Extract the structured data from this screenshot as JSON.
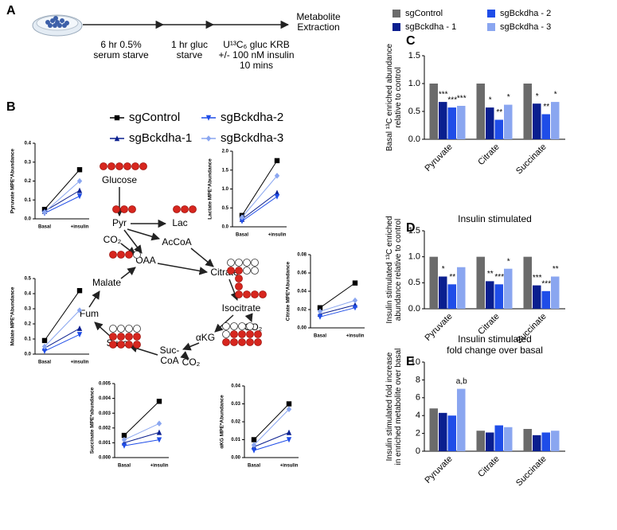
{
  "panel_labels": [
    "A",
    "B",
    "C",
    "D",
    "E"
  ],
  "workflow": {
    "steps": [
      [
        "6 hr 0.5%",
        "serum starve"
      ],
      [
        "1 hr gluc",
        "starve"
      ],
      [
        "U¹³C₆ gluc KRB",
        "+/- 100 nM insulin",
        "10 mins"
      ],
      [
        "Metabolite",
        "Extraction"
      ]
    ]
  },
  "pathway": {
    "nodes": [
      [
        "Glucose"
      ],
      [
        "Pyr"
      ],
      [
        "Lac"
      ],
      [
        "AcCoA"
      ],
      [
        "CO₂"
      ],
      [
        "OAA"
      ],
      [
        "Citrate"
      ],
      [
        "Isocitrate"
      ],
      [
        "CO₂"
      ],
      [
        "αKG"
      ],
      [
        "CO₂"
      ],
      [
        "Suc-",
        "CoA"
      ],
      [
        "Succ"
      ],
      [
        "Fum"
      ],
      [
        "Malate"
      ]
    ]
  },
  "chart_data": [
    {
      "type": "line",
      "ylabel": "Pyruvate MPE*Abundance",
      "categories": [
        "Basal",
        "+insulin"
      ],
      "ylim": [
        0,
        0.4
      ],
      "yticks": [
        {
          "value": 0,
          "label": "0.0"
        },
        0.1,
        0.2,
        0.3,
        0.4
      ],
      "series": [
        {
          "name": "sgControl",
          "color": "#000000",
          "marker": "square",
          "values": [
            0.05,
            0.26
          ]
        },
        {
          "name": "sgBckdha-1",
          "color": "#0a1f8f",
          "marker": "triangle-up",
          "values": [
            0.04,
            0.15
          ]
        },
        {
          "name": "sgBckdha-2",
          "color": "#1f4de8",
          "marker": "triangle-down",
          "values": [
            0.03,
            0.12
          ]
        },
        {
          "name": "sgBckdha-3",
          "color": "#8aa6f0",
          "marker": "diamond",
          "values": [
            0.035,
            0.2
          ]
        }
      ]
    },
    {
      "type": "line",
      "ylabel": "Lactate MPE*Abundance",
      "categories": [
        "Basal",
        "+insulin"
      ],
      "ylim": [
        0,
        2
      ],
      "yticks": [
        {
          "value": 0,
          "label": "0.0"
        },
        0.5,
        {
          "value": 1,
          "label": "1.0"
        },
        1.5,
        {
          "value": 2,
          "label": "2.0"
        }
      ],
      "series": [
        {
          "color": "#000000",
          "marker": "square",
          "values": [
            0.3,
            1.75
          ]
        },
        {
          "color": "#0a1f8f",
          "marker": "triangle-up",
          "values": [
            0.2,
            0.9
          ]
        },
        {
          "color": "#1f4de8",
          "marker": "triangle-down",
          "values": [
            0.15,
            0.8
          ]
        },
        {
          "color": "#8aa6f0",
          "marker": "diamond",
          "values": [
            0.25,
            1.35
          ]
        }
      ]
    },
    {
      "type": "line",
      "ylabel": "Citrate MPE*Abundance",
      "categories": [
        "Basal",
        "+insulin"
      ],
      "ylim": [
        0,
        0.08
      ],
      "yticks": [
        {
          "value": 0,
          "label": "0.00"
        },
        0.02,
        0.04,
        0.06,
        0.08
      ],
      "series": [
        {
          "color": "#000000",
          "marker": "square",
          "values": [
            0.022,
            0.049
          ]
        },
        {
          "color": "#0a1f8f",
          "marker": "triangle-up",
          "values": [
            0.015,
            0.025
          ]
        },
        {
          "color": "#1f4de8",
          "marker": "triangle-down",
          "values": [
            0.012,
            0.022
          ]
        },
        {
          "color": "#8aa6f0",
          "marker": "diamond",
          "values": [
            0.018,
            0.03
          ]
        }
      ]
    },
    {
      "type": "line",
      "ylabel": "Malate MPE*Abundance",
      "categories": [
        "Basal",
        "+insulin"
      ],
      "ylim": [
        0,
        0.5
      ],
      "yticks": [
        {
          "value": 0,
          "label": "0.0"
        },
        0.1,
        0.2,
        0.3,
        0.4,
        0.5
      ],
      "series": [
        {
          "color": "#000000",
          "marker": "square",
          "values": [
            0.09,
            0.42
          ]
        },
        {
          "color": "#0a1f8f",
          "marker": "triangle-up",
          "values": [
            0.04,
            0.17
          ]
        },
        {
          "color": "#1f4de8",
          "marker": "triangle-down",
          "values": [
            0.02,
            0.13
          ]
        },
        {
          "color": "#8aa6f0",
          "marker": "diamond",
          "values": [
            0.05,
            0.29
          ]
        }
      ]
    },
    {
      "type": "line",
      "ylabel": "Succinate MPE*abundance",
      "categories": [
        "Basal",
        "+insulin"
      ],
      "ylim": [
        0,
        0.005
      ],
      "yticks": [
        {
          "value": 0,
          "label": "0.000"
        },
        0.001,
        0.002,
        0.003,
        0.004,
        0.005
      ],
      "series": [
        {
          "color": "#000000",
          "marker": "square",
          "values": [
            0.0015,
            0.0038
          ]
        },
        {
          "color": "#0a1f8f",
          "marker": "triangle-up",
          "values": [
            0.001,
            0.0017
          ]
        },
        {
          "color": "#1f4de8",
          "marker": "triangle-down",
          "values": [
            0.0008,
            0.0012
          ]
        },
        {
          "color": "#8aa6f0",
          "marker": "diamond",
          "values": [
            0.0012,
            0.0023
          ]
        }
      ]
    },
    {
      "type": "line",
      "ylabel": "αKG MPE*Abundance",
      "categories": [
        "Basal",
        "+insulin"
      ],
      "ylim": [
        0,
        0.04
      ],
      "yticks": [
        {
          "value": 0,
          "label": "0.00"
        },
        0.01,
        0.02,
        0.03,
        0.04
      ],
      "series": [
        {
          "color": "#000000",
          "marker": "square",
          "values": [
            0.01,
            0.03
          ]
        },
        {
          "color": "#0a1f8f",
          "marker": "triangle-up",
          "values": [
            0.006,
            0.014
          ]
        },
        {
          "color": "#1f4de8",
          "marker": "triangle-down",
          "values": [
            0.004,
            0.01
          ]
        },
        {
          "color": "#8aa6f0",
          "marker": "diamond",
          "values": [
            0.007,
            0.027
          ]
        }
      ]
    },
    {
      "type": "bar",
      "ylabel": [
        "Basal ¹³C enriched abundance",
        "relative to control"
      ],
      "categories": [
        "Pyruvate",
        "Citrate",
        "Succinate"
      ],
      "ylim": [
        0,
        1.5
      ],
      "yticks": [
        {
          "value": 0,
          "label": "0.0"
        },
        0.5,
        {
          "value": 1,
          "label": "1.0"
        },
        1.5
      ],
      "series": [
        {
          "name": "sgControl",
          "color": "#6b6b6b",
          "values": [
            1,
            1,
            1
          ]
        },
        {
          "name": "sgBckdha - 1",
          "color": "#0a1f8f",
          "values": [
            0.67,
            0.57,
            0.64
          ],
          "annotations": [
            "***",
            "*",
            "*"
          ]
        },
        {
          "name": "sgBckdha - 2",
          "color": "#1f4de8",
          "values": [
            0.57,
            0.35,
            0.45
          ],
          "annotations": [
            "***",
            "**",
            "**"
          ]
        },
        {
          "name": "sgBckdha - 3",
          "color": "#8aa6f0",
          "values": [
            0.6,
            0.62,
            0.67
          ],
          "annotations": [
            "***",
            "*",
            "*"
          ]
        }
      ]
    },
    {
      "type": "bar",
      "title": [
        "Insulin stimulated"
      ],
      "ylabel": [
        "Insulin stimulated ¹³C enriched",
        "abundance relative to control"
      ],
      "categories": [
        "Pyruvate",
        "Citrate",
        "Succinate"
      ],
      "ylim": [
        0,
        1.5
      ],
      "yticks": [
        {
          "value": 0,
          "label": "0.0"
        },
        0.5,
        {
          "value": 1,
          "label": "1.0"
        },
        1.5
      ],
      "series": [
        {
          "color": "#6b6b6b",
          "values": [
            1,
            1,
            1
          ]
        },
        {
          "color": "#0a1f8f",
          "values": [
            0.62,
            0.53,
            0.45
          ],
          "annotations": [
            "*",
            "**",
            "***"
          ]
        },
        {
          "color": "#1f4de8",
          "values": [
            0.47,
            0.47,
            0.34
          ],
          "annotations": [
            "**",
            "***",
            "***"
          ]
        },
        {
          "color": "#8aa6f0",
          "values": [
            0.8,
            0.77,
            0.62
          ],
          "annotations": [
            null,
            "*",
            "**"
          ]
        }
      ]
    },
    {
      "type": "bar",
      "title": [
        "Insulin stimulated",
        "fold change over basal"
      ],
      "ylabel": [
        "Insulin stimulated fold increase",
        "in enriched metabolite over basal"
      ],
      "categories": [
        "Pyruvate",
        "Citrate",
        "Succinate"
      ],
      "ylim": [
        0,
        10
      ],
      "yticks": [
        0,
        2,
        4,
        6,
        8,
        10
      ],
      "series": [
        {
          "color": "#6b6b6b",
          "values": [
            4.8,
            2.3,
            2.5
          ]
        },
        {
          "color": "#0a1f8f",
          "values": [
            4.3,
            2.1,
            1.8
          ]
        },
        {
          "color": "#1f4de8",
          "values": [
            4,
            2.9,
            2.1
          ]
        },
        {
          "color": "#8aa6f0",
          "values": [
            7,
            2.7,
            2.3
          ],
          "annotations": [
            "a,b",
            null,
            null
          ]
        }
      ]
    }
  ]
}
